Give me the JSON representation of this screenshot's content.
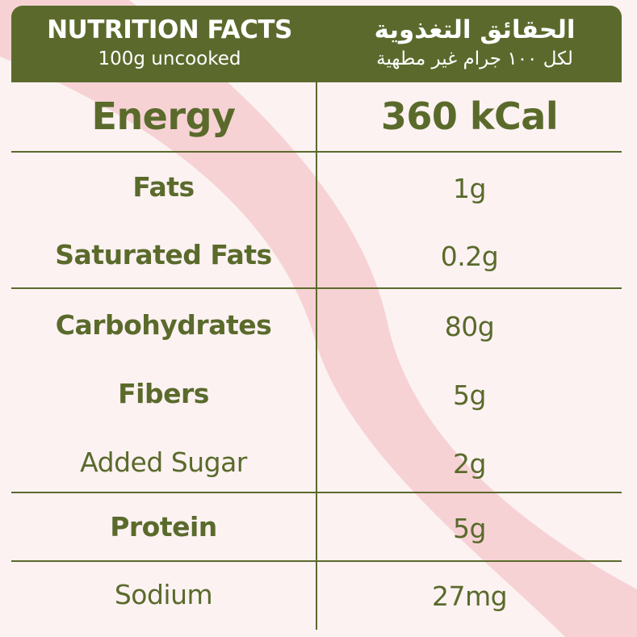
{
  "header": {
    "title_en": "NUTRITION FACTS",
    "subtitle_en": "100g uncooked",
    "title_ar": "الحقائق التغذوية",
    "subtitle_ar": "لكل ١٠٠ جرام غير مطهية"
  },
  "energy": {
    "label": "Energy",
    "value": "360 kCal"
  },
  "rows": [
    {
      "label": "Fats",
      "value": "1g"
    },
    {
      "label": "Saturated Fats",
      "value": "0.2g"
    },
    {
      "label": "Carbohydrates",
      "value": "80g"
    },
    {
      "label": "Fibers",
      "value": "5g"
    },
    {
      "label": "Added Sugar",
      "value": "2g"
    },
    {
      "label": "Protein",
      "value": "5g"
    },
    {
      "label": "Sodium",
      "value": "27mg"
    }
  ],
  "colors": {
    "brand": "#5b6a2c",
    "background": "#fcf2f2",
    "swoosh": "#f5ced2"
  }
}
